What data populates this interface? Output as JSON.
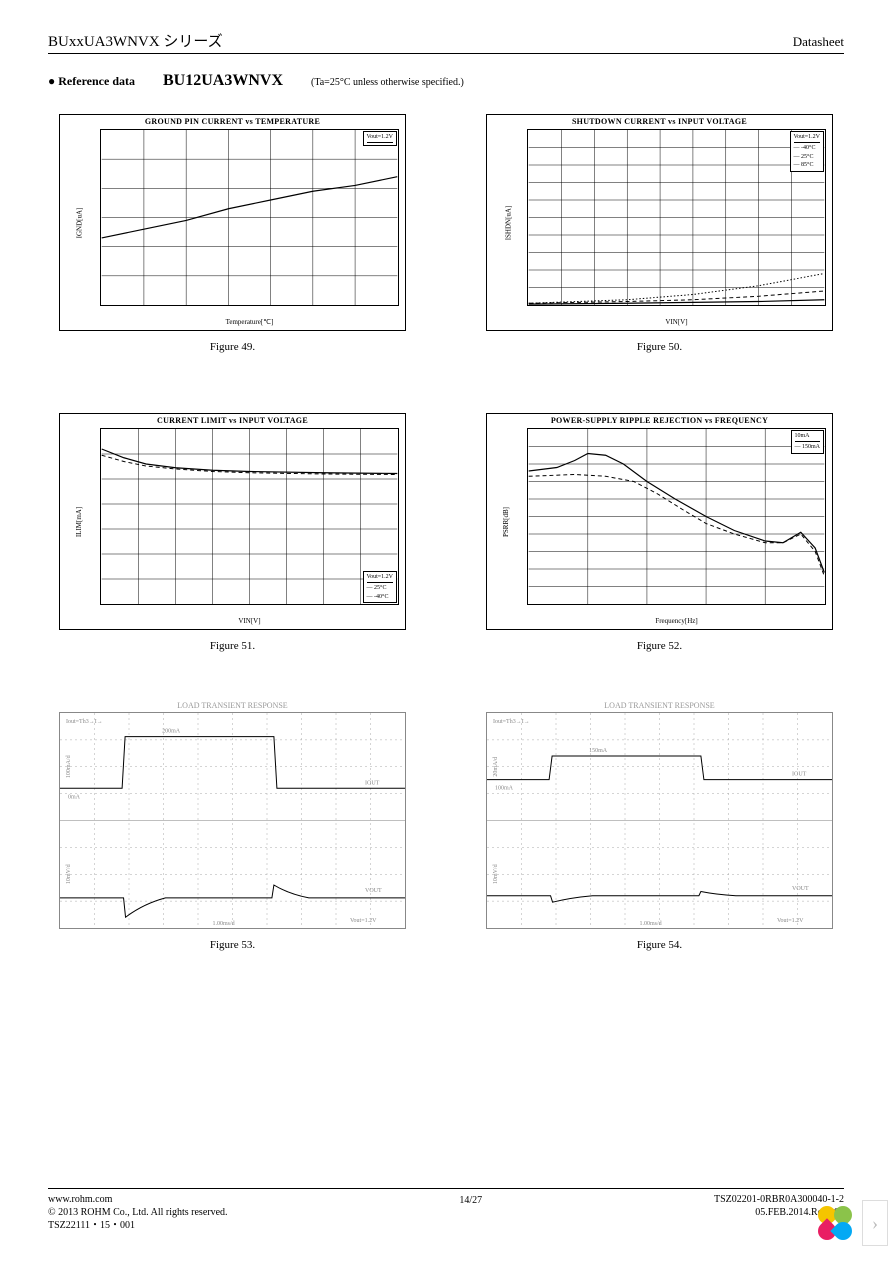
{
  "header": {
    "series": "BUxxUA3WNVX シリーズ",
    "ds": "Datasheet"
  },
  "ref": {
    "bullet": "● Reference data",
    "part": "BU12UA3WNVX",
    "note": "(Ta=25°C unless otherwise specified.)"
  },
  "charts": [
    {
      "type": "line",
      "title": "GROUND PIN CURRENT vs TEMPERATURE",
      "xlabel": "Temperature[℃]",
      "ylabel": "IGND[uA]",
      "legend_pos": "tr",
      "legend": [
        "Vout=1.2V"
      ],
      "xlim": [
        -40,
        100
      ],
      "ylim": [
        0,
        60
      ],
      "xticks": [
        -40,
        -20,
        0,
        20,
        40,
        60,
        80,
        100
      ],
      "yticks": [
        0,
        10,
        20,
        30,
        40,
        50,
        60
      ],
      "grid_rows": 6,
      "grid_cols": 7,
      "series": [
        {
          "style": "solid",
          "pts": [
            [
              -40,
              23
            ],
            [
              -20,
              26
            ],
            [
              0,
              29
            ],
            [
              20,
              33
            ],
            [
              40,
              36
            ],
            [
              60,
              39
            ],
            [
              80,
              41
            ],
            [
              100,
              44
            ]
          ]
        }
      ],
      "caption": "Figure 49."
    },
    {
      "type": "line",
      "title": "SHUTDOWN CURRENT vs INPUT VOLTAGE",
      "xlabel": "VIN[V]",
      "ylabel": "ISHDN[uA]",
      "legend_pos": "tr2",
      "legend": [
        "Vout=1.2V",
        "-40°C",
        "25°C",
        "85°C"
      ],
      "xlim": [
        1.5,
        6
      ],
      "ylim": [
        0,
        100
      ],
      "xticks": [
        1.5,
        2,
        2.5,
        3,
        3.5,
        4,
        4.5,
        5,
        5.5,
        6
      ],
      "yticks": [
        0,
        10,
        20,
        30,
        40,
        50,
        60,
        70,
        80,
        90,
        100
      ],
      "grid_rows": 10,
      "grid_cols": 9,
      "series": [
        {
          "style": "solid",
          "pts": [
            [
              1.5,
              0.5
            ],
            [
              3,
              1
            ],
            [
              4,
              1.5
            ],
            [
              5,
              2
            ],
            [
              6,
              3
            ]
          ]
        },
        {
          "style": "dash",
          "pts": [
            [
              1.5,
              1
            ],
            [
              3,
              2
            ],
            [
              4,
              3
            ],
            [
              5,
              5
            ],
            [
              6,
              8
            ]
          ]
        },
        {
          "style": "dot",
          "pts": [
            [
              1.5,
              1
            ],
            [
              3,
              3
            ],
            [
              4,
              6
            ],
            [
              5,
              11
            ],
            [
              6,
              18
            ]
          ]
        }
      ],
      "caption": "Figure 50."
    },
    {
      "type": "line",
      "title": "CURRENT LIMIT vs INPUT VOLTAGE",
      "xlabel": "VIN[V]",
      "ylabel": "ILIM[mA]",
      "legend_pos": "br",
      "legend": [
        "Vout=1.2V",
        "25°C",
        "-40°C"
      ],
      "xlim": [
        2,
        6
      ],
      "ylim": [
        0,
        700
      ],
      "xticks": [
        2,
        2.5,
        3,
        3.5,
        4,
        4.5,
        5,
        5.5,
        6
      ],
      "yticks": [
        0,
        100,
        200,
        300,
        400,
        500,
        600,
        700
      ],
      "grid_rows": 7,
      "grid_cols": 8,
      "series": [
        {
          "style": "solid",
          "pts": [
            [
              2,
              620
            ],
            [
              2.3,
              585
            ],
            [
              2.6,
              560
            ],
            [
              3,
              545
            ],
            [
              3.5,
              535
            ],
            [
              4,
              530
            ],
            [
              5,
              525
            ],
            [
              6,
              522
            ]
          ]
        },
        {
          "style": "dash",
          "pts": [
            [
              2,
              595
            ],
            [
              2.3,
              570
            ],
            [
              2.6,
              552
            ],
            [
              3,
              540
            ],
            [
              3.5,
              530
            ],
            [
              4,
              525
            ],
            [
              5,
              520
            ],
            [
              6,
              518
            ]
          ]
        }
      ],
      "caption": "Figure 51."
    },
    {
      "type": "line",
      "title": "POWER-SUPPLY RIPPLE REJECTION vs FREQUENCY",
      "xlabel": "Frequency[Hz]",
      "ylabel": "PSRR[dB]",
      "legend_pos": "tr2",
      "legend": [
        "10mA",
        "150mA"
      ],
      "xlim": [
        10,
        1000000
      ],
      "ylim": [
        0,
        100
      ],
      "xlog": true,
      "xticks": [
        10,
        100,
        1000,
        10000,
        100000,
        1000000
      ],
      "yticks": [
        0,
        10,
        20,
        30,
        40,
        50,
        60,
        70,
        80,
        90,
        100
      ],
      "grid_rows": 10,
      "grid_cols": 5,
      "series": [
        {
          "style": "solid",
          "pts": [
            [
              10,
              76
            ],
            [
              30,
              78
            ],
            [
              60,
              82
            ],
            [
              100,
              86
            ],
            [
              200,
              85
            ],
            [
              400,
              80
            ],
            [
              1000,
              70
            ],
            [
              3000,
              60
            ],
            [
              10000,
              50
            ],
            [
              30000,
              42
            ],
            [
              100000,
              36
            ],
            [
              200000,
              35
            ],
            [
              400000,
              41
            ],
            [
              700000,
              32
            ],
            [
              1000000,
              18
            ]
          ]
        },
        {
          "style": "dash",
          "pts": [
            [
              10,
              73
            ],
            [
              60,
              74
            ],
            [
              200,
              73
            ],
            [
              600,
              70
            ],
            [
              1500,
              63
            ],
            [
              4000,
              54
            ],
            [
              10000,
              46
            ],
            [
              30000,
              40
            ],
            [
              100000,
              35
            ],
            [
              200000,
              35
            ],
            [
              400000,
              40
            ],
            [
              700000,
              30
            ],
            [
              1000000,
              16
            ]
          ]
        }
      ],
      "caption": "Figure 52."
    },
    {
      "type": "scope",
      "title": "LOAD TRANSIENT RESPONSE",
      "caption": "Figure 53.",
      "top_label": "Iout=Th3→I→",
      "annot": [
        "200mA",
        "IOUT",
        "0mA",
        "VOUT",
        "Vout=1.2V",
        "1.00ms/d"
      ],
      "top_trace": {
        "lo": 70,
        "hi": 22,
        "t1": 18,
        "t2": 62
      },
      "bot_trace": {
        "base": 72,
        "dip_t": 19,
        "dip_d": 18,
        "rise_t": 62,
        "rise_d": 12
      },
      "scales": [
        "100mA/d",
        "10mV/d"
      ]
    },
    {
      "type": "scope",
      "title": "LOAD TRANSIENT RESPONSE",
      "caption": "Figure 54.",
      "top_label": "Iout=Th3→I→",
      "annot": [
        "150mA",
        "IOUT",
        "100mA",
        "VOUT",
        "Vout=1.2V",
        "1.00ms/d"
      ],
      "top_trace": {
        "lo": 62,
        "hi": 40,
        "t1": 18,
        "t2": 62
      },
      "bot_trace": {
        "base": 70,
        "dip_t": 19,
        "dip_d": 6,
        "rise_t": 62,
        "rise_d": 4
      },
      "scales": [
        "20mA/d",
        "10mV/d"
      ]
    }
  ],
  "footer": {
    "url": "www.rohm.com",
    "copyright": "© 2013 ROHM Co., Ltd. All rights reserved.",
    "code": "TSZ22111・15・001",
    "page": "14/27",
    "doc": "TSZ02201-0RBR0A300040-1-2",
    "date": "05.FEB.2014.Rev.007"
  }
}
